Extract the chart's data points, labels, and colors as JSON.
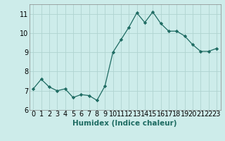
{
  "x": [
    0,
    1,
    2,
    3,
    4,
    5,
    6,
    7,
    8,
    9,
    10,
    11,
    12,
    13,
    14,
    15,
    16,
    17,
    18,
    19,
    20,
    21,
    22,
    23
  ],
  "y": [
    7.1,
    7.6,
    7.2,
    7.0,
    7.1,
    6.65,
    6.8,
    6.75,
    6.5,
    7.25,
    9.0,
    9.65,
    10.3,
    11.05,
    10.55,
    11.1,
    10.5,
    10.1,
    10.1,
    9.85,
    9.4,
    9.05,
    9.05,
    9.2
  ],
  "xlabel": "Humidex (Indice chaleur)",
  "ylim": [
    6,
    11.5
  ],
  "xlim": [
    -0.5,
    23.5
  ],
  "yticks": [
    6,
    7,
    8,
    9,
    10,
    11
  ],
  "xtick_labels": [
    "0",
    "1",
    "2",
    "3",
    "4",
    "5",
    "6",
    "7",
    "8",
    "9",
    "10",
    "11",
    "12",
    "13",
    "14",
    "15",
    "16",
    "17",
    "18",
    "19",
    "20",
    "21",
    "22",
    "23"
  ],
  "bg_color": "#cdecea",
  "grid_color": "#b0d4d0",
  "line_color": "#1e6b62",
  "marker_color": "#1e6b62",
  "xlabel_fontsize": 7.5,
  "tick_fontsize": 7
}
